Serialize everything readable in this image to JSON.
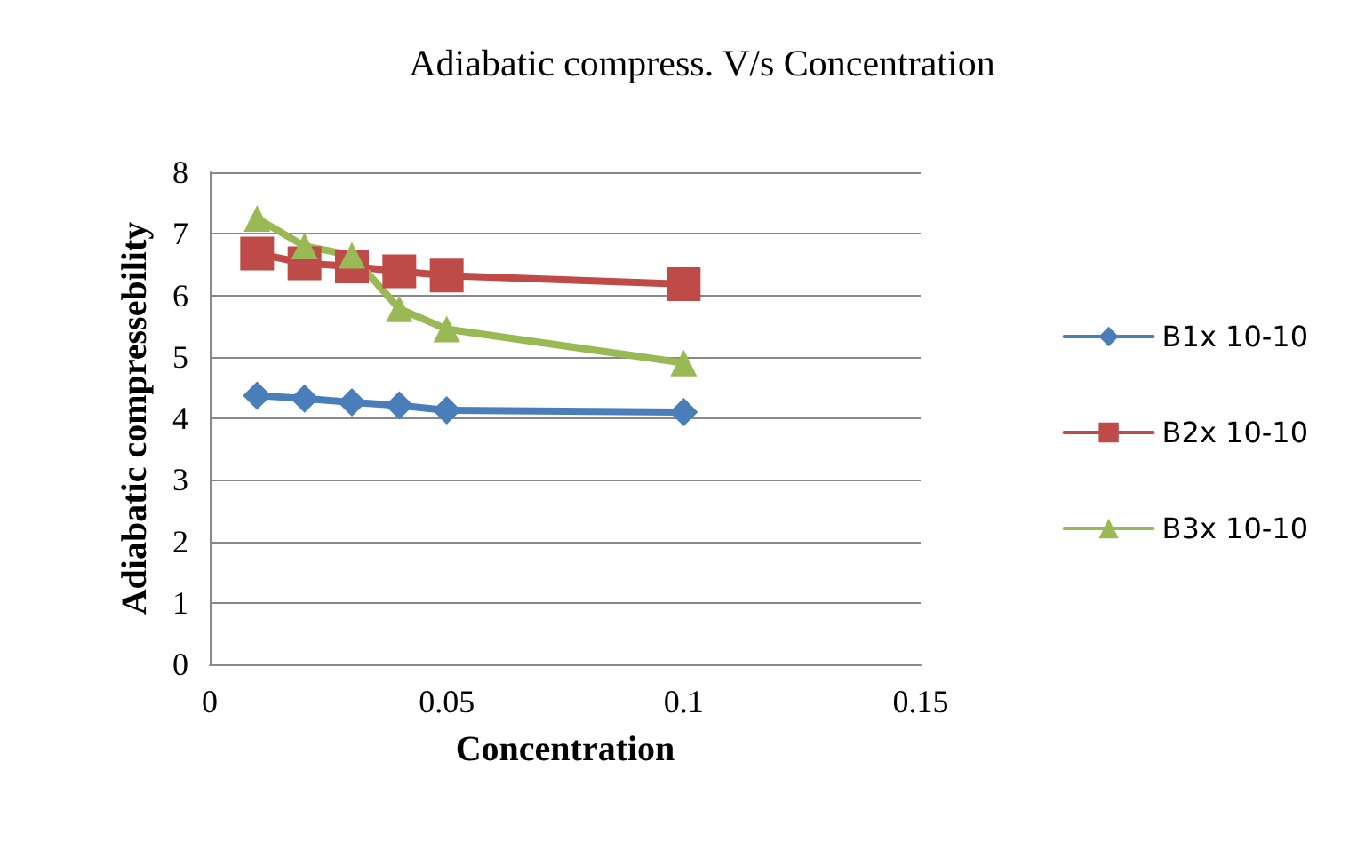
{
  "chart_data": {
    "type": "line",
    "title": "Adiabatic compress. V/s Concentration",
    "xlabel": "Concentration",
    "ylabel": "Adiabatic compressebility",
    "x": [
      0.01,
      0.02,
      0.03,
      0.04,
      0.05,
      0.1
    ],
    "series": [
      {
        "name": "B1x 10-10",
        "color": "#4a7ebb",
        "marker": "diamond",
        "values": [
          4.37,
          4.32,
          4.26,
          4.21,
          4.13,
          4.1
        ]
      },
      {
        "name": "B2x 10-10",
        "color": "#be4b48",
        "marker": "square",
        "values": [
          6.68,
          6.52,
          6.47,
          6.39,
          6.32,
          6.18
        ]
      },
      {
        "name": "B3x 10-10",
        "color": "#98b954",
        "marker": "triangle",
        "values": [
          7.25,
          6.8,
          6.65,
          5.78,
          5.45,
          4.9
        ]
      }
    ],
    "xlim": [
      0,
      0.15
    ],
    "xticks": [
      0,
      0.05,
      0.1,
      0.15
    ],
    "ylim": [
      0,
      8
    ],
    "yticks": [
      0,
      1,
      2,
      3,
      4,
      5,
      6,
      7,
      8
    ],
    "grid": "y",
    "legend": "right"
  }
}
